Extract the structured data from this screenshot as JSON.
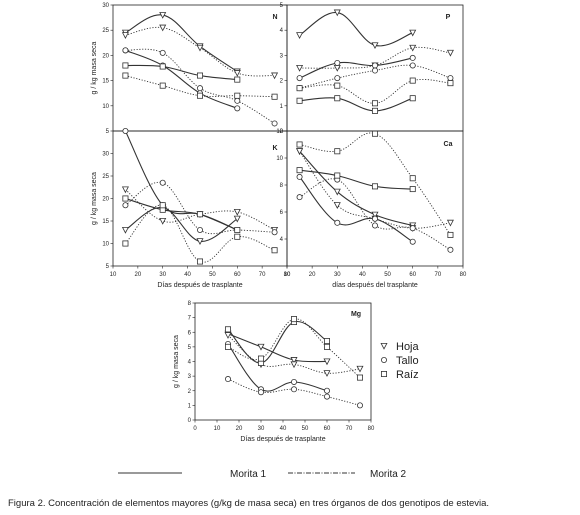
{
  "caption": "Figura 2. Concentración de elementos mayores (g/kg de masa seca) en tres órganos de dos genotipos de estevia.",
  "legend": {
    "organs": [
      {
        "name": "Hoja",
        "marker": "triangle-down"
      },
      {
        "name": "Tallo",
        "marker": "circle"
      },
      {
        "name": "Raíz",
        "marker": "square"
      }
    ],
    "genotypes": [
      {
        "name": "Morita 1",
        "line": "solid"
      },
      {
        "name": "Morita 2",
        "line": "dotted"
      }
    ]
  },
  "colors": {
    "line": "#333333",
    "axis": "#222222"
  },
  "chart_data": [
    {
      "type": "line",
      "panel": "N",
      "title": "N",
      "ylabel": "g / kg masa seca",
      "xlabel": "",
      "xlim": [
        10,
        80
      ],
      "ylim": [
        5,
        30
      ],
      "xticks": [],
      "yticks": [
        5,
        10,
        15,
        20,
        25,
        30
      ],
      "series": [
        {
          "name": "Hoja Morita 1",
          "marker": "triangle-down",
          "line": "solid",
          "x": [
            15,
            30,
            45,
            60
          ],
          "y": [
            24.5,
            28,
            21.8,
            16.8
          ]
        },
        {
          "name": "Hoja Morita 2",
          "marker": "triangle-down",
          "line": "dotted",
          "x": [
            15,
            30,
            45,
            60,
            75
          ],
          "y": [
            24,
            25.5,
            21.5,
            16.5,
            16
          ]
        },
        {
          "name": "Tallo Morita 1",
          "marker": "circle",
          "line": "solid",
          "x": [
            15,
            30,
            45,
            60
          ],
          "y": [
            21,
            18,
            12.5,
            9.5
          ]
        },
        {
          "name": "Tallo Morita 2",
          "marker": "circle",
          "line": "dotted",
          "x": [
            15,
            30,
            45,
            60,
            75
          ],
          "y": [
            21,
            20.5,
            13.5,
            11,
            6.5
          ]
        },
        {
          "name": "Raíz Morita 1",
          "marker": "square",
          "line": "solid",
          "x": [
            15,
            30,
            45,
            60
          ],
          "y": [
            18,
            17.8,
            16,
            15.2
          ]
        },
        {
          "name": "Raíz Morita 2",
          "marker": "square",
          "line": "dotted",
          "x": [
            15,
            30,
            45,
            60,
            75
          ],
          "y": [
            16,
            14,
            12,
            12,
            11.8
          ]
        }
      ]
    },
    {
      "type": "line",
      "panel": "P",
      "title": "P",
      "ylabel": "",
      "xlabel": "",
      "xlim": [
        10,
        80
      ],
      "ylim": [
        0,
        5
      ],
      "xticks": [],
      "yticks": [
        0,
        1,
        2,
        3,
        4,
        5
      ],
      "series": [
        {
          "name": "Hoja Morita 1",
          "marker": "triangle-down",
          "line": "solid",
          "x": [
            15,
            30,
            45,
            60
          ],
          "y": [
            3.8,
            4.7,
            3.4,
            3.9
          ]
        },
        {
          "name": "Hoja Morita 2",
          "marker": "triangle-down",
          "line": "dotted",
          "x": [
            15,
            30,
            45,
            60,
            75
          ],
          "y": [
            2.5,
            2.5,
            2.6,
            3.3,
            3.1
          ]
        },
        {
          "name": "Tallo Morita 1",
          "marker": "circle",
          "line": "solid",
          "x": [
            15,
            30,
            45,
            60
          ],
          "y": [
            2.1,
            2.7,
            2.6,
            2.9
          ]
        },
        {
          "name": "Tallo Morita 2",
          "marker": "circle",
          "line": "dotted",
          "x": [
            15,
            30,
            45,
            60,
            75
          ],
          "y": [
            1.7,
            2.1,
            2.4,
            2.6,
            2.1
          ]
        },
        {
          "name": "Raíz Morita 1",
          "marker": "square",
          "line": "solid",
          "x": [
            15,
            30,
            45,
            60
          ],
          "y": [
            1.2,
            1.3,
            0.8,
            1.3
          ]
        },
        {
          "name": "Raíz Morita 2",
          "marker": "square",
          "line": "dotted",
          "x": [
            15,
            30,
            45,
            60,
            75
          ],
          "y": [
            1.7,
            1.8,
            1.1,
            2.0,
            1.9
          ]
        }
      ]
    },
    {
      "type": "line",
      "panel": "K",
      "title": "K",
      "ylabel": "g / kg masa seca",
      "xlabel": "Días después de trasplante",
      "xlim": [
        10,
        80
      ],
      "ylim": [
        5,
        35
      ],
      "xticks": [
        10,
        20,
        30,
        40,
        50,
        60,
        70,
        80
      ],
      "yticks": [
        5,
        10,
        15,
        20,
        25,
        30
      ],
      "series": [
        {
          "name": "Hoja Morita 1",
          "marker": "triangle-down",
          "line": "solid",
          "x": [
            15,
            30,
            45,
            60
          ],
          "y": [
            13,
            18,
            10.5,
            15.5
          ]
        },
        {
          "name": "Hoja Morita 2",
          "marker": "triangle-down",
          "line": "dotted",
          "x": [
            15,
            30,
            45,
            60,
            75
          ],
          "y": [
            22,
            15,
            16.5,
            17,
            13
          ]
        },
        {
          "name": "Tallo Morita 1",
          "marker": "circle",
          "line": "solid",
          "x": [
            15,
            30,
            45,
            60
          ],
          "y": [
            35,
            18.5,
            16.5,
            13
          ]
        },
        {
          "name": "Tallo Morita 2",
          "marker": "circle",
          "line": "dotted",
          "x": [
            15,
            30,
            45,
            60,
            75
          ],
          "y": [
            18.5,
            23.5,
            13,
            13,
            12.5
          ]
        },
        {
          "name": "Raíz Morita 1",
          "marker": "square",
          "line": "solid",
          "x": [
            15,
            30,
            45,
            60
          ],
          "y": [
            20,
            17.5,
            16.5,
            13
          ]
        },
        {
          "name": "Raíz Morita 2",
          "marker": "square",
          "line": "dotted",
          "x": [
            15,
            30,
            45,
            60,
            75
          ],
          "y": [
            10,
            18.5,
            6,
            11.5,
            8.5
          ]
        }
      ]
    },
    {
      "type": "line",
      "panel": "Ca",
      "title": "Ca",
      "ylabel": "",
      "xlabel": "días después del trasplante",
      "xlim": [
        10,
        80
      ],
      "ylim": [
        2,
        12
      ],
      "xticks": [
        10,
        20,
        30,
        40,
        50,
        60,
        70,
        80
      ],
      "yticks": [
        4,
        6,
        8,
        10,
        12
      ],
      "series": [
        {
          "name": "Hoja Morita 1",
          "marker": "triangle-down",
          "line": "solid",
          "x": [
            15,
            30,
            45,
            60
          ],
          "y": [
            10.5,
            7.5,
            5.8,
            5.0
          ]
        },
        {
          "name": "Hoja Morita 2",
          "marker": "triangle-down",
          "line": "dotted",
          "x": [
            15,
            30,
            45,
            60,
            75
          ],
          "y": [
            10.5,
            6.5,
            5.5,
            4.8,
            5.2
          ]
        },
        {
          "name": "Tallo Morita 1",
          "marker": "circle",
          "line": "solid",
          "x": [
            15,
            30,
            45,
            60
          ],
          "y": [
            8.6,
            5.2,
            5.5,
            3.8
          ]
        },
        {
          "name": "Tallo Morita 2",
          "marker": "circle",
          "line": "dotted",
          "x": [
            15,
            30,
            45,
            60,
            75
          ],
          "y": [
            7.1,
            8.4,
            5.0,
            4.8,
            3.2
          ]
        },
        {
          "name": "Raíz Morita 1",
          "marker": "square",
          "line": "solid",
          "x": [
            15,
            30,
            45,
            60
          ],
          "y": [
            9.1,
            8.7,
            7.9,
            7.7
          ]
        },
        {
          "name": "Raíz Morita 2",
          "marker": "square",
          "line": "dotted",
          "x": [
            15,
            30,
            45,
            60,
            75
          ],
          "y": [
            11,
            10.5,
            11.8,
            8.5,
            4.3
          ]
        }
      ]
    },
    {
      "type": "line",
      "panel": "Mg",
      "title": "Mg",
      "ylabel": "g / kg masa seca",
      "xlabel": "Días después de trasplante",
      "xlim": [
        0,
        80
      ],
      "ylim": [
        0,
        8
      ],
      "xticks": [
        0,
        10,
        20,
        30,
        40,
        50,
        60,
        70,
        80
      ],
      "yticks": [
        0,
        1,
        2,
        3,
        4,
        5,
        6,
        7,
        8
      ],
      "series": [
        {
          "name": "Hoja Morita 1",
          "marker": "triangle-down",
          "line": "solid",
          "x": [
            15,
            30,
            45,
            60
          ],
          "y": [
            5.9,
            5.0,
            4.1,
            4.0
          ]
        },
        {
          "name": "Hoja Morita 2",
          "marker": "triangle-down",
          "line": "dotted",
          "x": [
            15,
            30,
            45,
            60,
            75
          ],
          "y": [
            5.8,
            3.8,
            3.8,
            3.2,
            3.5
          ]
        },
        {
          "name": "Tallo Morita 1",
          "marker": "circle",
          "line": "solid",
          "x": [
            15,
            30,
            45,
            60
          ],
          "y": [
            5.2,
            2.1,
            2.6,
            2.0
          ]
        },
        {
          "name": "Tallo Morita 2",
          "marker": "circle",
          "line": "dotted",
          "x": [
            15,
            30,
            45,
            60,
            75
          ],
          "y": [
            2.8,
            1.9,
            2.1,
            1.6,
            1.0
          ]
        },
        {
          "name": "Raíz Morita 1",
          "marker": "square",
          "line": "solid",
          "x": [
            15,
            30,
            45,
            60
          ],
          "y": [
            6.2,
            3.9,
            6.7,
            5.4
          ]
        },
        {
          "name": "Raíz Morita 2",
          "marker": "square",
          "line": "dotted",
          "x": [
            15,
            30,
            45,
            60,
            75
          ],
          "y": [
            5.0,
            4.2,
            6.9,
            5.0,
            2.9
          ]
        }
      ]
    }
  ]
}
